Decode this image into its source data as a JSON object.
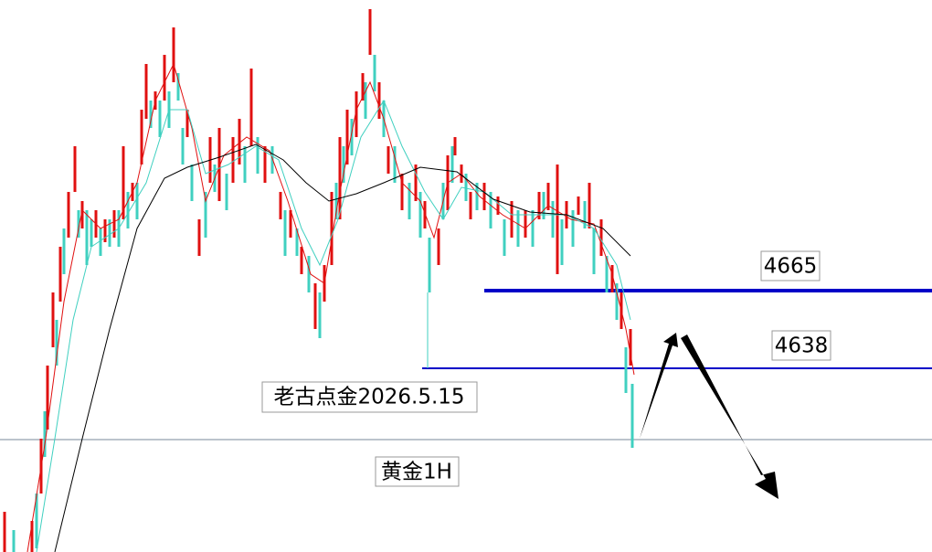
{
  "levels": [
    {
      "label": "4665"
    },
    {
      "label": "4638"
    }
  ],
  "annotations": {
    "author": "老古点金2026.5.15",
    "symbol": "黄金1H"
  }
}
